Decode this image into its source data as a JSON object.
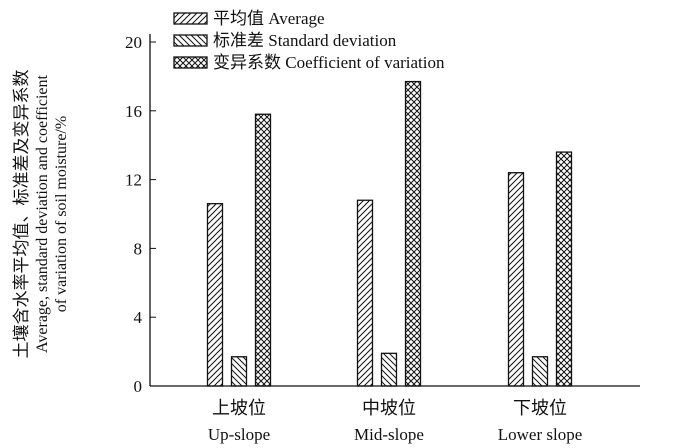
{
  "chart_data": {
    "type": "bar",
    "categories": [
      "上坡位",
      "中坡位",
      "下坡位"
    ],
    "categories_en": [
      "Up-slope",
      "Mid-slope",
      "Lower slope"
    ],
    "series": [
      {
        "name": "平均值 Average",
        "pattern": "diag-right",
        "values": [
          10.6,
          10.8,
          12.4
        ]
      },
      {
        "name": "标准差 Standard deviation",
        "pattern": "diag-left",
        "values": [
          1.7,
          1.9,
          1.7
        ]
      },
      {
        "name": "变异系数 Coefficient of variation",
        "pattern": "cross",
        "values": [
          15.8,
          17.7,
          13.6
        ]
      }
    ],
    "ylabel_cn": "土壤含水率平均值、标准差及变异系数",
    "ylabel_en1": "Average, standard deviation and coefficient",
    "ylabel_en2": "of variation of soil moisture/%",
    "ylim": [
      0,
      20
    ],
    "yticks": [
      0,
      4,
      8,
      12,
      16,
      20
    ],
    "legend_position": "top-left",
    "grid": false
  }
}
